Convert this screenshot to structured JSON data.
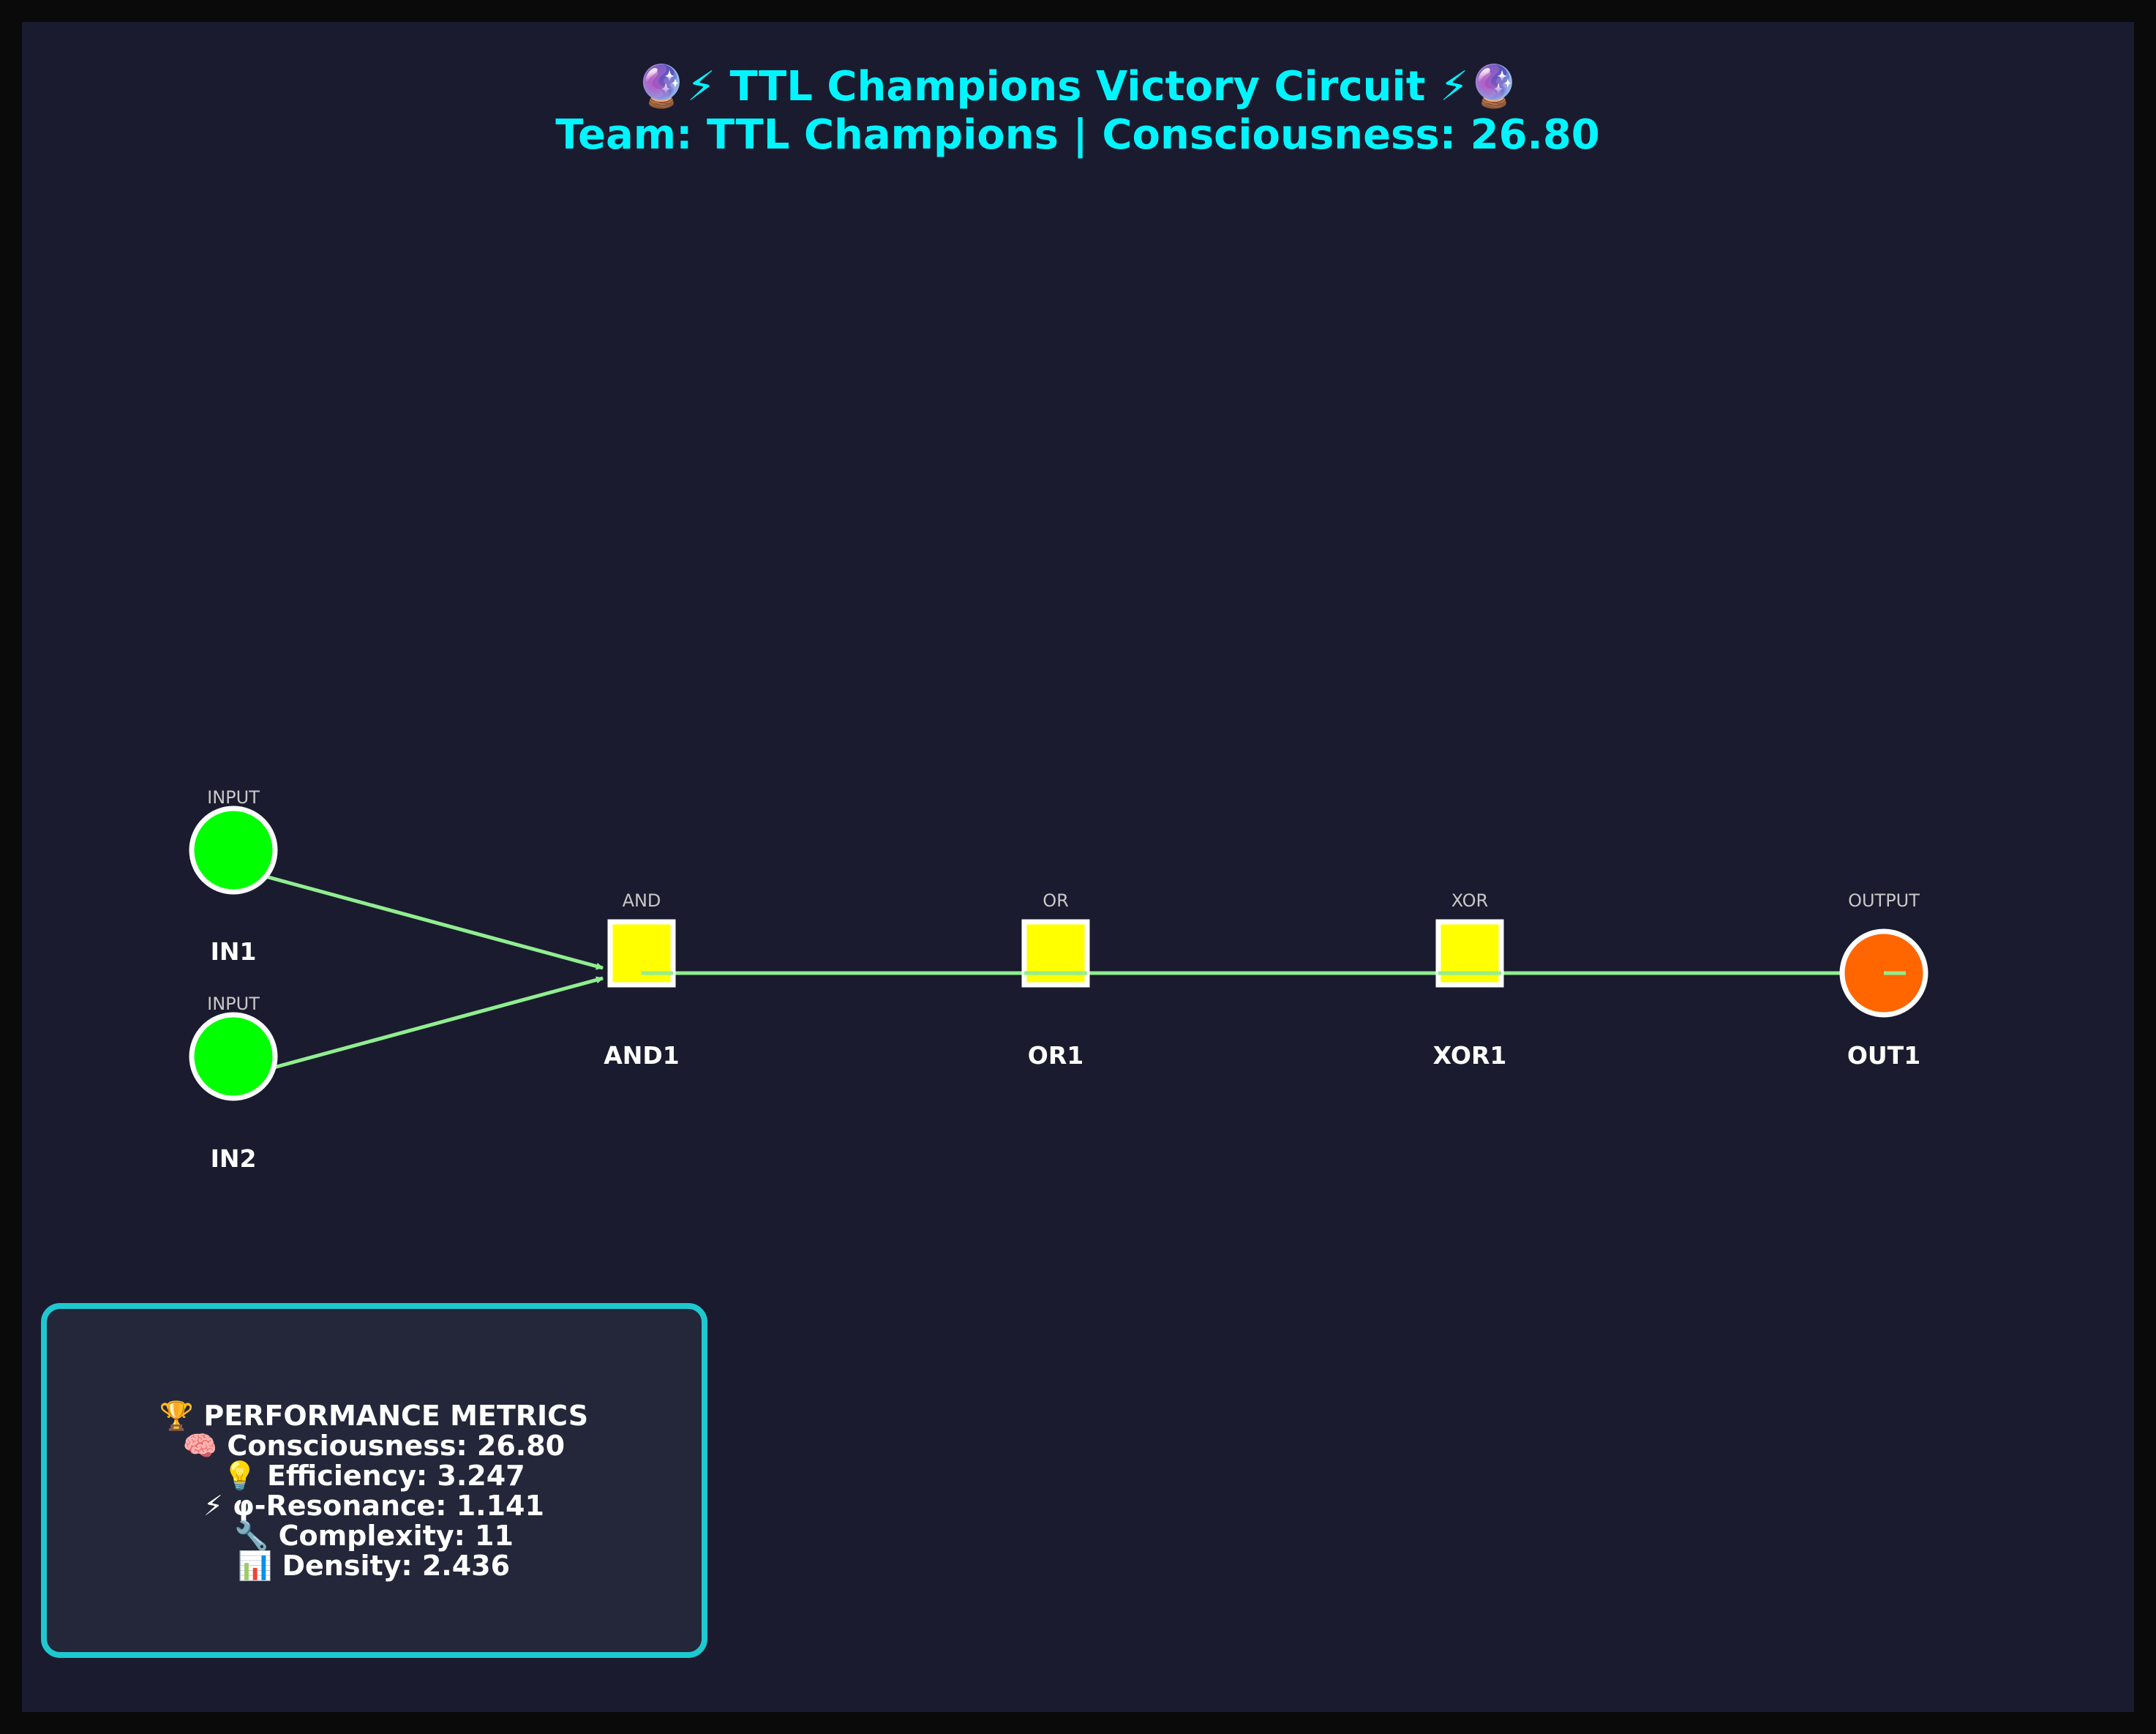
{
  "title": {
    "line1": "🔮⚡ TTL Champions Victory Circuit ⚡🔮",
    "line2": "Team: TTL Champions | Consciousness: 26.80"
  },
  "nodes": [
    {
      "id": "in1",
      "name": "IN1",
      "type": "INPUT",
      "shape": "circle",
      "color": "#00ff00"
    },
    {
      "id": "in2",
      "name": "IN2",
      "type": "INPUT",
      "shape": "circle",
      "color": "#00ff00"
    },
    {
      "id": "and1",
      "name": "AND1",
      "type": "AND",
      "shape": "square",
      "color": "#ffff00"
    },
    {
      "id": "or1",
      "name": "OR1",
      "type": "OR",
      "shape": "square",
      "color": "#ffff00"
    },
    {
      "id": "xor1",
      "name": "XOR1",
      "type": "XOR",
      "shape": "square",
      "color": "#ffff00"
    },
    {
      "id": "out1",
      "name": "OUT1",
      "type": "OUTPUT",
      "shape": "circle",
      "color": "#ff6600"
    }
  ],
  "edges": [
    {
      "from": "IN1",
      "to": "AND1"
    },
    {
      "from": "IN2",
      "to": "AND1"
    },
    {
      "from": "AND1",
      "to": "OR1"
    },
    {
      "from": "OR1",
      "to": "XOR1"
    },
    {
      "from": "XOR1",
      "to": "OUT1"
    }
  ],
  "metrics": {
    "heading": "🏆 PERFORMANCE METRICS",
    "consciousness": "🧠 Consciousness: 26.80",
    "efficiency": "💡 Efficiency: 3.247",
    "resonance": "⚡ φ-Resonance: 1.141",
    "complexity": "🔧 Complexity: 11",
    "density": "📊 Density: 2.436"
  },
  "colors": {
    "background": "#1a1b2e",
    "frame": "#0a0a0a",
    "accent": "#00f5ff",
    "edge": "#90ee90",
    "panel_border": "#1ec8d0",
    "panel_fill": "#24263a"
  }
}
